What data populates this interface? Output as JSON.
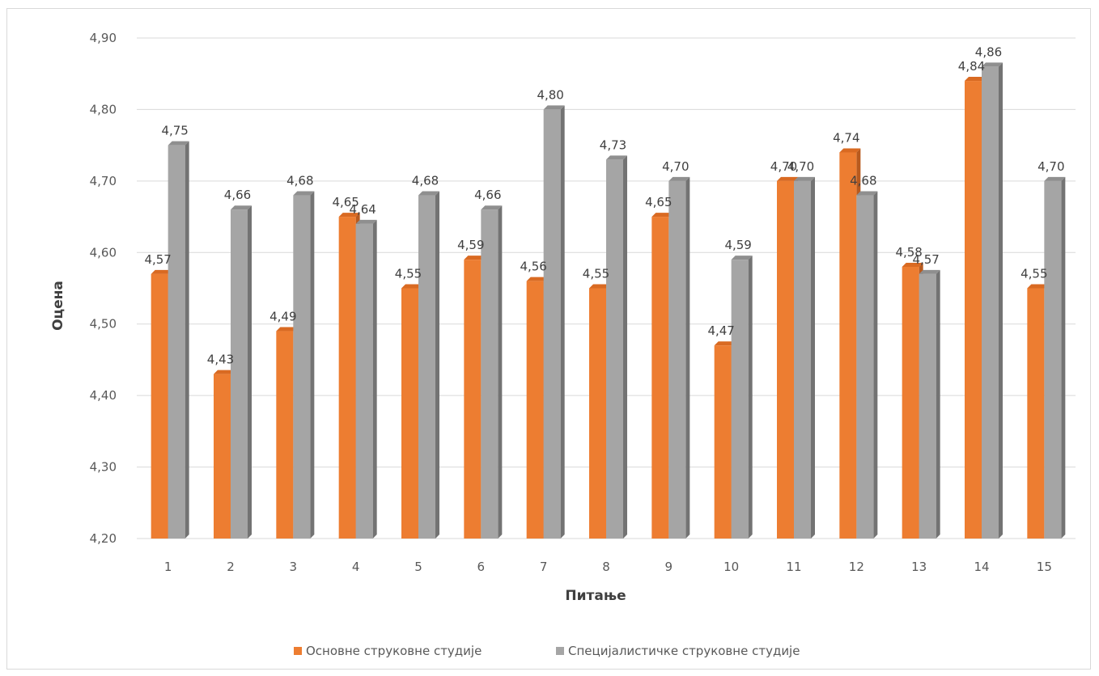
{
  "chart_data": {
    "type": "bar",
    "title": "",
    "xlabel": "Питање",
    "ylabel": "Оцена",
    "ylim": [
      4.2,
      4.9
    ],
    "ytick_step": 0.1,
    "yticks": [
      "4,20",
      "4,30",
      "4,40",
      "4,50",
      "4,60",
      "4,70",
      "4,80",
      "4,90"
    ],
    "categories": [
      "1",
      "2",
      "3",
      "4",
      "5",
      "6",
      "7",
      "8",
      "9",
      "10",
      "11",
      "12",
      "13",
      "14",
      "15"
    ],
    "series": [
      {
        "name": "Основне струковне студије",
        "color": "#ed7d31",
        "values": [
          4.57,
          4.43,
          4.49,
          4.65,
          4.55,
          4.59,
          4.56,
          4.55,
          4.65,
          4.47,
          4.7,
          4.74,
          4.58,
          4.84,
          4.55
        ],
        "labels": [
          "4,57",
          "4,43",
          "4,49",
          "4,65",
          "4,55",
          "4,59",
          "4,56",
          "4,55",
          "4,65",
          "4,47",
          "4,70",
          "4,74",
          "4,58",
          "4,84",
          "4,55"
        ]
      },
      {
        "name": "Специјалистичке струковне студије",
        "color": "#a5a5a5",
        "values": [
          4.75,
          4.66,
          4.68,
          4.64,
          4.68,
          4.66,
          4.8,
          4.73,
          4.7,
          4.59,
          4.7,
          4.68,
          4.57,
          4.86,
          4.7
        ],
        "labels": [
          "4,75",
          "4,66",
          "4,68",
          "4,64",
          "4,68",
          "4,66",
          "4,80",
          "4,73",
          "4,70",
          "4,59",
          "4,70",
          "4,68",
          "4,57",
          "4,86",
          "4,70"
        ]
      }
    ],
    "grid": true,
    "legend": "bottom"
  }
}
